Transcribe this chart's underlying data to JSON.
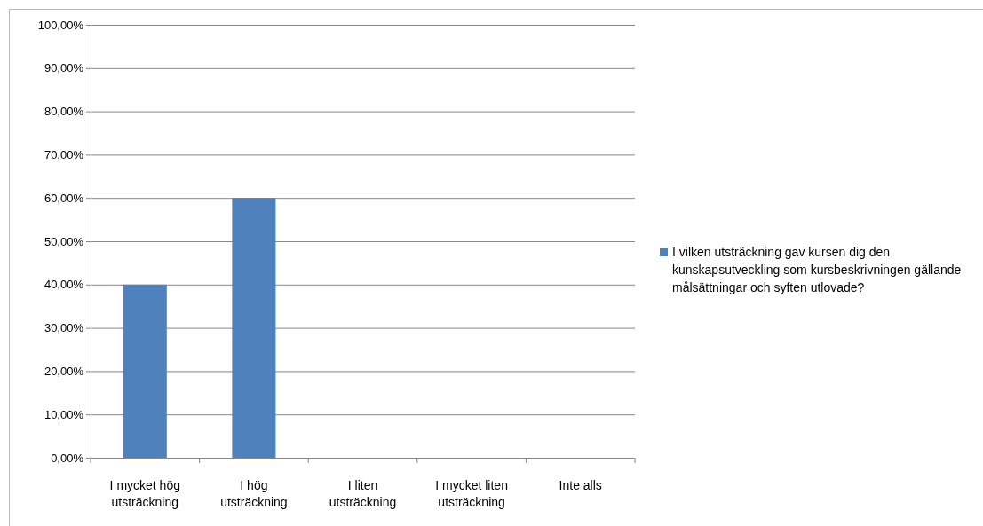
{
  "chart_data": {
    "type": "bar",
    "categories": [
      "I mycket hög utsträckning",
      "I hög utsträckning",
      "I liten utsträckning",
      "I mycket liten utsträckning",
      "Inte alls"
    ],
    "series": [
      {
        "name": "I vilken utsträckning gav kursen dig den kunskapsutveckling som kursbeskrivningen gällande målsättningar och syften utlovade?",
        "color": "#4f81bd",
        "values": [
          40,
          60,
          0,
          0,
          0
        ]
      }
    ],
    "ylim": [
      0,
      100
    ],
    "yticks": [
      {
        "value": 0,
        "label": "0,00%"
      },
      {
        "value": 10,
        "label": "10,00%"
      },
      {
        "value": 20,
        "label": "20,00%"
      },
      {
        "value": 30,
        "label": "30,00%"
      },
      {
        "value": 40,
        "label": "40,00%"
      },
      {
        "value": 50,
        "label": "50,00%"
      },
      {
        "value": 60,
        "label": "60,00%"
      },
      {
        "value": 70,
        "label": "70,00%"
      },
      {
        "value": 80,
        "label": "80,00%"
      },
      {
        "value": 90,
        "label": "90,00%"
      },
      {
        "value": 100,
        "label": "100,00%"
      }
    ],
    "grid": "y",
    "legend": "right"
  }
}
